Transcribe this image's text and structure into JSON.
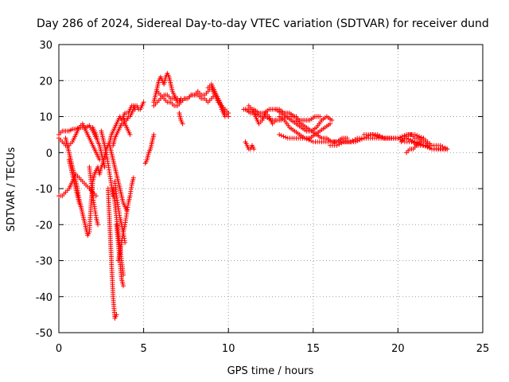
{
  "chart_data": {
    "type": "scatter",
    "title": "Day 286 of 2024, Sidereal Day-to-day VTEC variation (SDTVAR) for receiver dund",
    "xlabel": "GPS time / hours",
    "ylabel": "SDTVAR / TECUs",
    "xlim": [
      0,
      25
    ],
    "ylim": [
      -50,
      30
    ],
    "x_ticks": [
      0,
      5,
      10,
      15,
      20,
      25
    ],
    "y_ticks": [
      -50,
      -40,
      -30,
      -20,
      -10,
      0,
      10,
      20,
      30
    ],
    "grid": true,
    "marker": "+",
    "series": [
      {
        "name": "SDTVAR",
        "color": "#ff0000",
        "tracks": [
          {
            "x": [
              0.0,
              0.2,
              0.4,
              0.6,
              0.8,
              1.0,
              1.2,
              1.4,
              1.6,
              1.8,
              2.0,
              2.2
            ],
            "y": [
              5,
              6,
              6,
              6,
              6.5,
              6.5,
              7,
              7,
              7,
              7.5,
              6,
              4
            ]
          },
          {
            "x": [
              0.0,
              0.2,
              0.4,
              0.6,
              0.8,
              1.0,
              1.2,
              1.4,
              1.6,
              1.8,
              2.0,
              2.2,
              2.4
            ],
            "y": [
              4,
              3,
              2,
              2,
              3,
              5,
              7,
              8,
              6,
              4,
              2,
              0,
              -2
            ]
          },
          {
            "x": [
              0.0,
              0.2,
              0.4,
              0.6,
              0.8,
              1.0,
              1.2,
              1.4,
              1.6,
              1.8,
              2.0,
              2.2
            ],
            "y": [
              -12,
              -12,
              -11,
              -10,
              -8,
              -6,
              -7,
              -8,
              -9,
              -10,
              -11,
              -12
            ]
          },
          {
            "x": [
              0.4,
              0.5,
              0.6,
              0.7,
              0.8,
              0.9,
              1.0,
              1.1,
              1.2,
              1.3,
              1.4,
              1.5,
              1.6,
              1.7,
              1.8,
              1.9,
              2.0,
              2.1,
              2.2
            ],
            "y": [
              4,
              2,
              0,
              -2,
              -4,
              -6,
              -8,
              -10,
              -13,
              -15,
              -17,
              -19,
              -21,
              -23,
              -22,
              -14,
              -8,
              -6,
              -5
            ]
          },
          {
            "x": [
              0.6,
              0.7,
              0.8,
              0.9,
              1.0,
              1.1,
              1.2,
              1.3
            ],
            "y": [
              -2,
              -4,
              -6,
              -8,
              -10,
              -12,
              -14,
              -15
            ]
          },
          {
            "x": [
              1.8,
              1.9,
              2.0,
              2.1,
              2.2,
              2.3
            ],
            "y": [
              -4,
              -8,
              -12,
              -15,
              -18,
              -20
            ]
          },
          {
            "x": [
              2.0,
              2.1,
              2.2,
              2.3,
              2.4,
              2.5,
              2.6,
              2.7
            ],
            "y": [
              7,
              6,
              5,
              3,
              2,
              0,
              -2,
              -4
            ]
          },
          {
            "x": [
              2.5,
              2.6,
              2.7,
              2.8,
              2.9,
              3.0,
              3.1,
              3.2
            ],
            "y": [
              6,
              4,
              2,
              0,
              -3,
              -6,
              -9,
              -12
            ]
          },
          {
            "x": [
              2.2,
              2.3,
              2.4,
              2.5,
              2.6,
              2.7,
              2.8,
              2.9,
              3.0,
              3.1,
              3.2,
              3.3,
              3.4,
              3.5,
              3.6,
              3.7,
              3.8,
              3.9,
              4.0,
              4.1,
              4.2,
              4.3,
              4.4,
              4.5
            ],
            "y": [
              -5,
              -4,
              -6,
              -4,
              -3,
              -1,
              1,
              2,
              3,
              5,
              6,
              7,
              8,
              9,
              10,
              9,
              10,
              11,
              11,
              11,
              12,
              13,
              13,
              12
            ]
          },
          {
            "x": [
              3.2,
              3.3,
              3.4,
              3.5,
              3.6,
              3.7,
              3.8,
              3.9,
              4.0,
              4.1,
              4.2,
              4.3,
              4.4,
              4.5,
              4.6,
              4.7,
              4.8,
              4.9,
              5.0
            ],
            "y": [
              2,
              4,
              5,
              6,
              7,
              8,
              8,
              9,
              9,
              10,
              10,
              11,
              12,
              13,
              13,
              12,
              12,
              13,
              14
            ]
          },
          {
            "x": [
              2.9,
              3.0,
              3.1,
              3.2,
              3.3,
              3.4
            ],
            "y": [
              -10,
              -20,
              -30,
              -40,
              -46,
              -45
            ]
          },
          {
            "x": [
              3.2,
              3.3,
              3.4,
              3.5,
              3.6,
              3.7,
              3.8
            ],
            "y": [
              -10,
              -14,
              -18,
              -22,
              -26,
              -30,
              -34
            ]
          },
          {
            "x": [
              3.4,
              3.5,
              3.6,
              3.7,
              3.8
            ],
            "y": [
              -20,
              -25,
              -30,
              -35,
              -37
            ]
          },
          {
            "x": [
              3.5,
              3.6,
              3.7,
              3.8,
              3.9,
              4.0,
              4.1,
              4.2,
              4.3,
              4.4
            ],
            "y": [
              -30,
              -28,
              -25,
              -22,
              -20,
              -17,
              -14,
              -12,
              -9,
              -7
            ]
          },
          {
            "x": [
              3.0,
              3.1,
              3.2,
              3.3,
              3.4,
              3.5,
              3.6,
              3.7,
              3.8,
              3.9,
              4.0
            ],
            "y": [
              2,
              0,
              -2,
              -4,
              -6,
              -8,
              -10,
              -12,
              -14,
              -15,
              -16
            ]
          },
          {
            "x": [
              3.3,
              3.4,
              3.5,
              3.6,
              3.7,
              3.8,
              3.9
            ],
            "y": [
              -8,
              -12,
              -15,
              -18,
              -20,
              -22,
              -25
            ]
          },
          {
            "x": [
              3.8,
              3.9,
              4.0,
              4.1,
              4.2
            ],
            "y": [
              10,
              8,
              7,
              6,
              5
            ]
          },
          {
            "x": [
              5.1,
              5.2,
              5.3,
              5.4,
              5.5,
              5.6
            ],
            "y": [
              -3,
              -2,
              0,
              1,
              3,
              5
            ]
          },
          {
            "x": [
              5.6,
              5.7,
              5.8,
              5.9,
              6.0,
              6.1,
              6.2,
              6.3,
              6.4,
              6.5,
              6.6,
              6.7,
              6.8,
              6.9,
              7.0,
              7.1,
              7.2
            ],
            "y": [
              14,
              16,
              18,
              20,
              21,
              20,
              19,
              21,
              22,
              21,
              19,
              17,
              16,
              15,
              14,
              14,
              15
            ]
          },
          {
            "x": [
              5.6,
              5.8,
              6.0,
              6.2,
              6.4,
              6.6,
              6.8,
              7.0,
              7.2,
              7.4,
              7.6,
              7.8,
              8.0,
              8.2,
              8.4,
              8.6,
              8.8,
              9.0,
              9.2,
              9.4,
              9.6,
              9.8,
              10.0
            ],
            "y": [
              13,
              14,
              15,
              16,
              16,
              15,
              15,
              15,
              14,
              15,
              15,
              16,
              16,
              17,
              16,
              16,
              17,
              18,
              16,
              14,
              13,
              12,
              11
            ]
          },
          {
            "x": [
              5.8,
              6.0,
              6.2,
              6.4,
              6.6,
              6.8,
              7.0,
              7.2,
              7.4,
              7.6,
              7.8,
              8.0,
              8.2,
              8.4,
              8.6,
              8.8,
              9.0,
              9.2,
              9.4,
              9.6,
              9.8,
              10.0
            ],
            "y": [
              17,
              16,
              15,
              14,
              14,
              13,
              13,
              14,
              15,
              15,
              16,
              16,
              16,
              15,
              15,
              14,
              15,
              16,
              15,
              13,
              11,
              10
            ]
          },
          {
            "x": [
              7.1,
              7.2,
              7.3
            ],
            "y": [
              11,
              9,
              8
            ]
          },
          {
            "x": [
              8.8,
              9.0,
              9.2,
              9.4,
              9.6,
              9.8,
              10.0
            ],
            "y": [
              18,
              19,
              17,
              15,
              12,
              10,
              11
            ]
          },
          {
            "x": [
              11.0,
              11.1,
              11.2,
              11.3,
              11.4,
              11.5
            ],
            "y": [
              3,
              2,
              1,
              1,
              2,
              1
            ]
          },
          {
            "x": [
              10.9,
              11.2,
              11.5,
              11.8,
              12.1,
              12.4,
              12.7,
              13.0,
              13.3,
              13.6,
              13.9,
              14.2,
              14.5,
              14.8,
              15.1,
              15.4
            ],
            "y": [
              12,
              12,
              12,
              11,
              11,
              12,
              12,
              12,
              11,
              11,
              10,
              9,
              9,
              9,
              10,
              10
            ]
          },
          {
            "x": [
              11.0,
              11.3,
              11.6,
              11.9,
              12.2,
              12.5,
              12.8,
              13.1,
              13.4,
              13.7,
              14.0
            ],
            "y": [
              12,
              11,
              11,
              10,
              10,
              9,
              9,
              9,
              10,
              10,
              10
            ]
          },
          {
            "x": [
              11.2,
              11.4,
              11.6,
              11.8,
              12.0,
              12.2,
              12.4,
              12.6,
              12.8
            ],
            "y": [
              13,
              12,
              10,
              8,
              9,
              11,
              10,
              8,
              9
            ]
          },
          {
            "x": [
              12.8,
              13.1,
              13.4,
              13.7,
              14.0,
              14.3,
              14.6,
              14.9,
              15.2,
              15.5,
              15.8,
              16.1
            ],
            "y": [
              12,
              11,
              10,
              9,
              8,
              7,
              6,
              6,
              7,
              9,
              10,
              9
            ]
          },
          {
            "x": [
              13.0,
              13.3,
              13.6,
              13.9,
              14.2,
              14.5,
              14.8,
              15.1,
              15.4,
              15.7,
              16.0
            ],
            "y": [
              10,
              9,
              7,
              6,
              5,
              4,
              4,
              5,
              6,
              7,
              8
            ]
          },
          {
            "x": [
              14.0,
              14.3,
              14.6,
              14.9,
              15.2,
              15.5,
              15.8,
              16.1,
              16.4,
              16.7,
              17.0
            ],
            "y": [
              9,
              8,
              7,
              6,
              5,
              4,
              4,
              3,
              3,
              4,
              4
            ]
          },
          {
            "x": [
              13.0,
              13.5,
              14.0,
              14.5,
              15.0,
              15.5,
              16.0,
              16.5,
              17.0,
              17.5,
              18.0,
              18.5,
              19.0,
              19.5,
              20.0,
              20.5,
              21.0,
              21.5,
              22.0,
              22.5,
              22.9
            ],
            "y": [
              5,
              4,
              4,
              4,
              3,
              3,
              3,
              3,
              3,
              3,
              4,
              4,
              4,
              4,
              4,
              4,
              3,
              2,
              1,
              1,
              1
            ]
          },
          {
            "x": [
              16.0,
              16.4,
              16.8,
              17.2,
              17.6,
              18.0,
              18.4,
              18.8,
              19.2,
              19.6,
              20.0,
              20.4,
              20.8,
              21.2,
              21.6,
              22.0,
              22.4,
              22.8
            ],
            "y": [
              2,
              2,
              3,
              3,
              4,
              4,
              5,
              5,
              4,
              4,
              4,
              3,
              3,
              2,
              2,
              1,
              1,
              1
            ]
          },
          {
            "x": [
              18.0,
              18.5,
              19.0,
              19.5,
              20.0,
              20.5,
              21.0,
              21.5,
              22.0,
              22.5,
              22.9
            ],
            "y": [
              5,
              5,
              4,
              4,
              4,
              5,
              5,
              4,
              2,
              2,
              1
            ]
          },
          {
            "x": [
              20.2,
              20.4,
              20.6,
              20.8,
              21.0,
              21.2,
              21.4,
              21.6,
              21.8,
              22.0
            ],
            "y": [
              3,
              4,
              5,
              5,
              4,
              4,
              3,
              3,
              2,
              2
            ]
          },
          {
            "x": [
              20.5,
              20.7,
              20.9,
              21.1,
              21.3,
              21.5
            ],
            "y": [
              0,
              1,
              1,
              2,
              3,
              4
            ]
          }
        ]
      }
    ]
  }
}
